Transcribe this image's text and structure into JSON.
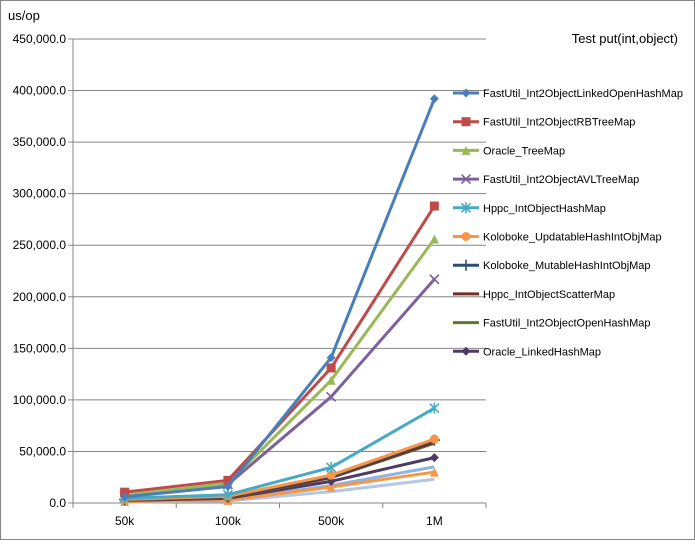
{
  "chart_data": {
    "type": "line",
    "title": "Test put(int,object)",
    "ylabel": "us/op",
    "xlabel": "",
    "categories": [
      "50k",
      "100k",
      "500k",
      "1M"
    ],
    "ylim": [
      0,
      450000
    ],
    "yticks": [
      0,
      50000,
      100000,
      150000,
      200000,
      250000,
      300000,
      350000,
      400000,
      450000
    ],
    "ytick_labels": [
      "0.0",
      "50,000.0",
      "100,000.0",
      "150,000.0",
      "200,000.0",
      "250,000.0",
      "300,000.0",
      "350,000.0",
      "400,000.0",
      "450,000.0"
    ],
    "grid": "horizontal",
    "legend_position": "right",
    "series": [
      {
        "name": "FastUtil_Int2ObjectLinkedOpenHashMap",
        "values": [
          6000,
          16000,
          141000,
          392000
        ],
        "color": "#4a7ebb",
        "marker": "diamond"
      },
      {
        "name": "FastUtil_Int2ObjectRBTreeMap",
        "values": [
          10500,
          22000,
          131000,
          288000
        ],
        "color": "#be4b48",
        "marker": "square"
      },
      {
        "name": "Oracle_TreeMap",
        "values": [
          7500,
          19000,
          119000,
          256000
        ],
        "color": "#98b954",
        "marker": "triangle"
      },
      {
        "name": "FastUtil_Int2ObjectAVLTreeMap",
        "values": [
          7000,
          18000,
          103000,
          217000
        ],
        "color": "#7d60a0",
        "marker": "x"
      },
      {
        "name": "Hppc_IntObjectHashMap",
        "values": [
          4500,
          8000,
          34500,
          92000
        ],
        "color": "#46aac5",
        "marker": "star"
      },
      {
        "name": "Koloboke_UpdatableHashIntObjMap",
        "values": [
          3500,
          6500,
          27000,
          62000
        ],
        "color": "#f79646",
        "marker": "circle"
      },
      {
        "name": "Koloboke_MutableHashIntObjMap",
        "values": [
          3300,
          6000,
          26000,
          61000
        ],
        "color": "#2c4d75",
        "marker": "plus"
      },
      {
        "name": "Hppc_IntObjectScatterMap",
        "values": [
          3000,
          5500,
          25000,
          59000
        ],
        "color": "#772c2a",
        "marker": "none"
      },
      {
        "name": "FastUtil_Int2ObjectOpenHashMap",
        "values": [
          2800,
          5200,
          24500,
          58000
        ],
        "color": "#5f7530",
        "marker": "none"
      },
      {
        "name": "Oracle_LinkedHashMap",
        "values": [
          2500,
          4500,
          21000,
          44000
        ],
        "color": "#4d3b62",
        "marker": "diamond"
      },
      {
        "values": [
          1500,
          2500,
          15500,
          30000
        ],
        "color": "#f79646",
        "marker": "triangle"
      },
      {
        "values": [
          1200,
          3000,
          17000,
          35000
        ],
        "color": "#8db3e2",
        "marker": "none"
      },
      {
        "values": [
          1000,
          2000,
          11000,
          23000
        ],
        "color": "#b3c7e6",
        "marker": "none"
      }
    ]
  }
}
